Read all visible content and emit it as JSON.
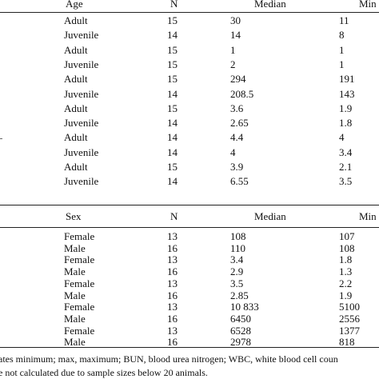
{
  "table1": {
    "headers": {
      "group": "Age",
      "n": "N",
      "median": "Median",
      "min": "Min"
    },
    "rows": [
      {
        "group": "Adult",
        "n": "15",
        "median": "30",
        "min": "11"
      },
      {
        "group": "Juvenile",
        "n": "14",
        "median": "14",
        "min": "8"
      },
      {
        "group": "Adult",
        "n": "15",
        "median": "1",
        "min": "1"
      },
      {
        "group": "Juvenile",
        "n": "15",
        "median": "2",
        "min": "1"
      },
      {
        "group": "Adult",
        "n": "15",
        "median": "294",
        "min": "191"
      },
      {
        "group": "Juvenile",
        "n": "14",
        "median": "208.5",
        "min": "143"
      },
      {
        "group": "Adult",
        "n": "15",
        "median": "3.6",
        "min": "1.9"
      },
      {
        "group": "Juvenile",
        "n": "14",
        "median": "2.65",
        "min": "1.8"
      },
      {
        "group": "Adult",
        "n": "14",
        "median": "4.4",
        "min": "4"
      },
      {
        "group": "Juvenile",
        "n": "14",
        "median": "4",
        "min": "3.4"
      },
      {
        "group": "Adult",
        "n": "15",
        "median": "3.9",
        "min": "2.1"
      },
      {
        "group": "Juvenile",
        "n": "14",
        "median": "6.55",
        "min": "3.5"
      }
    ]
  },
  "table2": {
    "headers": {
      "group": "Sex",
      "n": "N",
      "median": "Median",
      "min": "Min"
    },
    "rows": [
      {
        "group": "Female",
        "n": "13",
        "median": "108",
        "min": "107"
      },
      {
        "group": "Male",
        "n": "16",
        "median": "110",
        "min": "108"
      },
      {
        "group": "Female",
        "n": "13",
        "median": "3.4",
        "min": "1.8"
      },
      {
        "group": "Male",
        "n": "16",
        "median": "2.9",
        "min": "1.3"
      },
      {
        "group": "Female",
        "n": "13",
        "median": "3.5",
        "min": "2.2"
      },
      {
        "group": "Male",
        "n": "16",
        "median": "2.85",
        "min": "1.9"
      },
      {
        "group": "Female",
        "n": "13",
        "median": "10 833",
        "min": "5100"
      },
      {
        "group": "Male",
        "n": "16",
        "median": "6450",
        "min": "2556"
      },
      {
        "group": "Female",
        "n": "13",
        "median": "6528",
        "min": "1377"
      },
      {
        "group": "Male",
        "n": "16",
        "median": "2978",
        "min": "818"
      }
    ]
  },
  "footnotes": [
    "ates minimum; max, maximum; BUN, blood urea nitrogen; WBC, white blood cell coun",
    "e not calculated due to sample sizes below 20 animals."
  ]
}
